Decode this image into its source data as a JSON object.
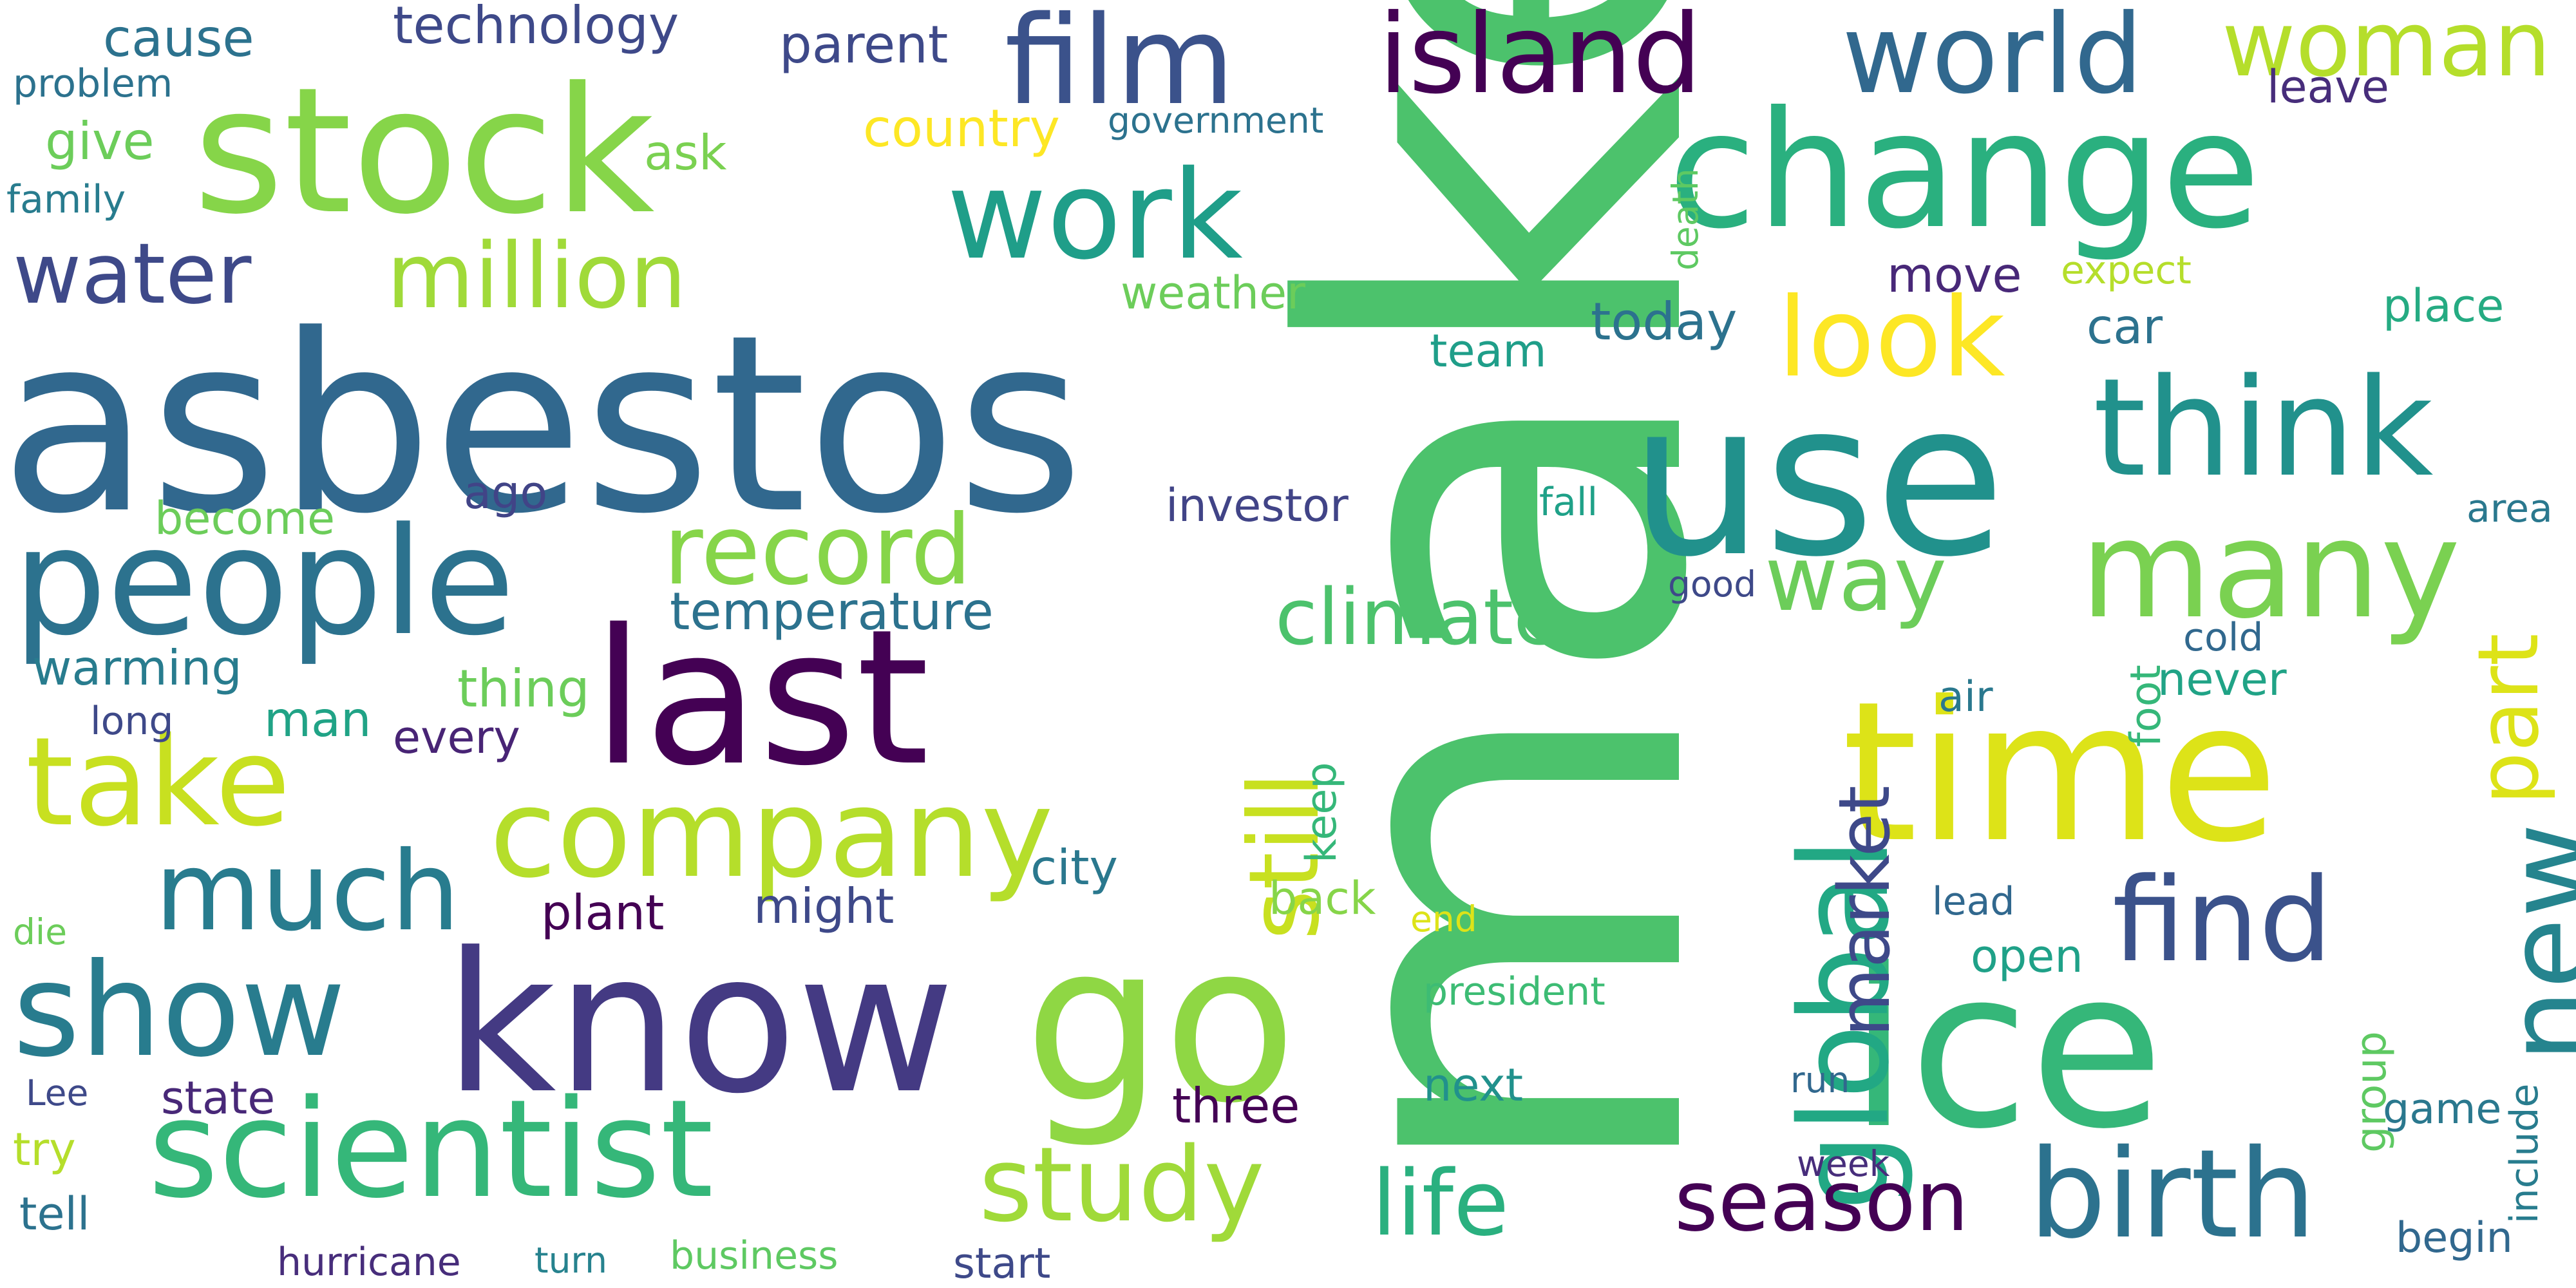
{
  "palette": {
    "dark_purple": "#440154",
    "indigo": "#443a83",
    "blue": "#31688e",
    "teal": "#21918c",
    "green": "#35b779",
    "light_green": "#8fd744",
    "yellow": "#dde318"
  },
  "words": [
    {
      "text": "make",
      "color": "#4cc26c"
    },
    {
      "text": "asbestos",
      "color": "#31688e"
    },
    {
      "text": "change",
      "color": "#2ab07f"
    },
    {
      "text": "use",
      "color": "#21918c"
    },
    {
      "text": "stock",
      "color": "#86d549"
    },
    {
      "text": "know",
      "color": "#443a83"
    },
    {
      "text": "last",
      "color": "#440154"
    },
    {
      "text": "time",
      "color": "#dde318"
    },
    {
      "text": "ice",
      "color": "#35b779"
    },
    {
      "text": "go",
      "color": "#8fd744"
    },
    {
      "text": "people",
      "color": "#2c728e"
    },
    {
      "text": "scientist",
      "color": "#35b779"
    },
    {
      "text": "island",
      "color": "#440154"
    },
    {
      "text": "film",
      "color": "#3b528b"
    },
    {
      "text": "world",
      "color": "#31688e"
    },
    {
      "text": "woman",
      "color": "#b5de2b"
    },
    {
      "text": "think",
      "color": "#21918c"
    },
    {
      "text": "many",
      "color": "#7ad151"
    },
    {
      "text": "work",
      "color": "#1f9e89"
    },
    {
      "text": "take",
      "color": "#c8e020"
    },
    {
      "text": "show",
      "color": "#287c8e"
    },
    {
      "text": "company",
      "color": "#b5de2b"
    },
    {
      "text": "record",
      "color": "#86d549"
    },
    {
      "text": "global",
      "color": "#22a884"
    },
    {
      "text": "birth",
      "color": "#2c728e"
    },
    {
      "text": "study",
      "color": "#a0da39"
    },
    {
      "text": "find",
      "color": "#3b528b"
    },
    {
      "text": "new",
      "color": "#25848e"
    },
    {
      "text": "look",
      "color": "#fde725"
    },
    {
      "text": "much",
      "color": "#287c8e"
    },
    {
      "text": "million",
      "color": "#a0da39"
    },
    {
      "text": "water",
      "color": "#3e4989"
    },
    {
      "text": "season",
      "color": "#440154"
    },
    {
      "text": "life",
      "color": "#2ab07f"
    },
    {
      "text": "climate",
      "color": "#4cc26c"
    },
    {
      "text": "way",
      "color": "#6ccd5a"
    },
    {
      "text": "still",
      "color": "#c8e020"
    },
    {
      "text": "market",
      "color": "#3e4989"
    },
    {
      "text": "part",
      "color": "#dde318"
    },
    {
      "text": "temperature",
      "color": "#2c728e"
    },
    {
      "text": "warming",
      "color": "#287c8e"
    },
    {
      "text": "thing",
      "color": "#6ccd5a"
    },
    {
      "text": "man",
      "color": "#20a386"
    },
    {
      "text": "every",
      "color": "#482475"
    },
    {
      "text": "long",
      "color": "#3e4989"
    },
    {
      "text": "become",
      "color": "#6ccd5a"
    },
    {
      "text": "ago",
      "color": "#414487"
    },
    {
      "text": "investor",
      "color": "#414487"
    },
    {
      "text": "fall",
      "color": "#1fa188"
    },
    {
      "text": "area",
      "color": "#2a788e"
    },
    {
      "text": "good",
      "color": "#3e4989"
    },
    {
      "text": "cold",
      "color": "#31688e"
    },
    {
      "text": "never",
      "color": "#20a386"
    },
    {
      "text": "air",
      "color": "#2a788e"
    },
    {
      "text": "foot",
      "color": "#35b779"
    },
    {
      "text": "technology",
      "color": "#3e4989"
    },
    {
      "text": "parent",
      "color": "#3e4989"
    },
    {
      "text": "cause",
      "color": "#2c728e"
    },
    {
      "text": "problem",
      "color": "#2c728e"
    },
    {
      "text": "give",
      "color": "#6ccd5a"
    },
    {
      "text": "ask",
      "color": "#7ad151"
    },
    {
      "text": "family",
      "color": "#287c8e"
    },
    {
      "text": "country",
      "color": "#fde725"
    },
    {
      "text": "government",
      "color": "#2c728e"
    },
    {
      "text": "leave",
      "color": "#472d7b"
    },
    {
      "text": "weather",
      "color": "#6ccd5a"
    },
    {
      "text": "team",
      "color": "#1f9e89"
    },
    {
      "text": "today",
      "color": "#2c728e"
    },
    {
      "text": "move",
      "color": "#482878"
    },
    {
      "text": "car",
      "color": "#2c728e"
    },
    {
      "text": "expect",
      "color": "#b5de2b"
    },
    {
      "text": "place",
      "color": "#25ab82"
    },
    {
      "text": "death",
      "color": "#5ec962"
    },
    {
      "text": "keep",
      "color": "#35b779"
    },
    {
      "text": "city",
      "color": "#2a788e"
    },
    {
      "text": "back",
      "color": "#86d549"
    },
    {
      "text": "end",
      "color": "#dde318"
    },
    {
      "text": "plant",
      "color": "#440154"
    },
    {
      "text": "might",
      "color": "#3e4989"
    },
    {
      "text": "open",
      "color": "#1fa188"
    },
    {
      "text": "lead",
      "color": "#31688e"
    },
    {
      "text": "group",
      "color": "#5ec962"
    },
    {
      "text": "include",
      "color": "#287c8e"
    },
    {
      "text": "game",
      "color": "#2a788e"
    },
    {
      "text": "die",
      "color": "#6ccd5a"
    },
    {
      "text": "state",
      "color": "#482878"
    },
    {
      "text": "Lee",
      "color": "#3e4989"
    },
    {
      "text": "try",
      "color": "#b5de2b"
    },
    {
      "text": "tell",
      "color": "#2c728e"
    },
    {
      "text": "hurricane",
      "color": "#472d7b"
    },
    {
      "text": "turn",
      "color": "#26828e"
    },
    {
      "text": "business",
      "color": "#5ec962"
    },
    {
      "text": "start",
      "color": "#3e4989"
    },
    {
      "text": "three",
      "color": "#440154"
    },
    {
      "text": "next",
      "color": "#21918c"
    },
    {
      "text": "president",
      "color": "#3dbc74"
    },
    {
      "text": "run",
      "color": "#31688e"
    },
    {
      "text": "week",
      "color": "#472d7b"
    },
    {
      "text": "begin",
      "color": "#31688e"
    }
  ]
}
